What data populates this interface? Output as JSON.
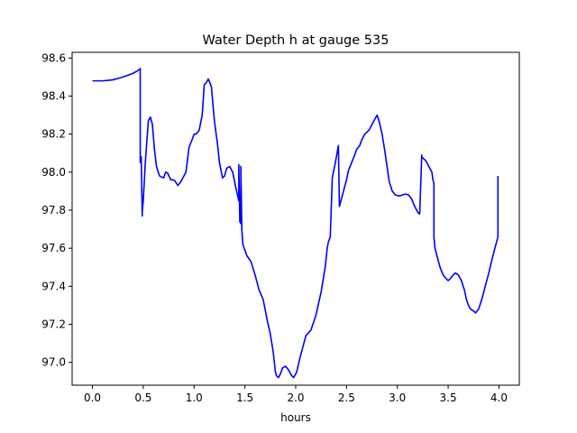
{
  "chart_data": {
    "type": "line",
    "title": "Water Depth h at gauge 535",
    "xlabel": "hours",
    "ylabel": "",
    "xlim": [
      -0.2,
      4.2
    ],
    "ylim": [
      96.88,
      98.63
    ],
    "xticks": [
      0.0,
      0.5,
      1.0,
      1.5,
      2.0,
      2.5,
      3.0,
      3.5,
      4.0
    ],
    "xtick_labels": [
      "0.0",
      "0.5",
      "1.0",
      "1.5",
      "2.0",
      "2.5",
      "3.0",
      "3.5",
      "4.0"
    ],
    "yticks": [
      97.0,
      97.2,
      97.4,
      97.6,
      97.8,
      98.0,
      98.2,
      98.4,
      98.6
    ],
    "ytick_labels": [
      "97.0",
      "97.2",
      "97.4",
      "97.6",
      "97.8",
      "98.0",
      "98.2",
      "98.4",
      "98.6"
    ],
    "grid": false,
    "legend": "none",
    "series": [
      {
        "color": "#0000ff",
        "x": [
          0.0,
          0.1,
          0.2,
          0.3,
          0.4,
          0.45,
          0.47,
          0.47,
          0.48,
          0.49,
          0.49,
          0.5,
          0.52,
          0.55,
          0.57,
          0.59,
          0.61,
          0.63,
          0.66,
          0.7,
          0.72,
          0.74,
          0.77,
          0.79,
          0.81,
          0.84,
          0.87,
          0.89,
          0.92,
          0.95,
          0.98,
          1.0,
          1.02,
          1.05,
          1.08,
          1.1,
          1.12,
          1.14,
          1.17,
          1.2,
          1.23,
          1.25,
          1.28,
          1.3,
          1.32,
          1.35,
          1.38,
          1.41,
          1.44,
          1.44,
          1.45,
          1.46,
          1.46,
          1.47,
          1.48,
          1.52,
          1.56,
          1.6,
          1.64,
          1.68,
          1.72,
          1.75,
          1.78,
          1.8,
          1.81,
          1.83,
          1.85,
          1.87,
          1.9,
          1.93,
          1.96,
          1.98,
          2.01,
          2.04,
          2.07,
          2.1,
          2.15,
          2.2,
          2.25,
          2.29,
          2.31,
          2.32,
          2.34,
          2.36,
          2.39,
          2.42,
          2.43,
          2.45,
          2.48,
          2.5,
          2.52,
          2.55,
          2.58,
          2.6,
          2.63,
          2.65,
          2.68,
          2.7,
          2.72,
          2.75,
          2.78,
          2.8,
          2.82,
          2.85,
          2.88,
          2.92,
          2.95,
          2.98,
          3.02,
          3.05,
          3.08,
          3.11,
          3.14,
          3.17,
          3.2,
          3.22,
          3.24,
          3.24,
          3.26,
          3.28,
          3.3,
          3.32,
          3.34,
          3.35,
          3.36,
          3.36,
          3.37,
          3.38,
          3.4,
          3.42,
          3.45,
          3.48,
          3.5,
          3.52,
          3.55,
          3.57,
          3.6,
          3.63,
          3.66,
          3.68,
          3.7,
          3.72,
          3.75,
          3.77,
          3.8,
          3.83,
          3.86,
          3.9,
          3.94,
          3.97,
          3.99,
          3.99
        ],
        "y": [
          98.48,
          98.48,
          98.485,
          98.5,
          98.52,
          98.535,
          98.545,
          98.05,
          98.08,
          97.77,
          97.79,
          97.85,
          98.05,
          98.27,
          98.29,
          98.25,
          98.12,
          98.03,
          97.98,
          97.97,
          98.0,
          97.995,
          97.96,
          97.96,
          97.955,
          97.93,
          97.95,
          97.97,
          98.0,
          98.13,
          98.17,
          98.2,
          98.2,
          98.22,
          98.3,
          98.46,
          98.47,
          98.49,
          98.45,
          98.27,
          98.15,
          98.05,
          97.97,
          97.98,
          98.02,
          98.03,
          98.0,
          97.92,
          97.85,
          98.04,
          97.74,
          97.73,
          98.03,
          97.7,
          97.62,
          97.56,
          97.53,
          97.46,
          97.38,
          97.33,
          97.22,
          97.15,
          97.05,
          96.95,
          96.93,
          96.92,
          96.94,
          96.97,
          96.98,
          96.96,
          96.93,
          96.92,
          96.95,
          97.02,
          97.08,
          97.14,
          97.17,
          97.25,
          97.37,
          97.5,
          97.6,
          97.63,
          97.66,
          97.97,
          98.05,
          98.14,
          97.82,
          97.86,
          97.92,
          97.96,
          98.01,
          98.05,
          98.09,
          98.12,
          98.14,
          98.17,
          98.2,
          98.21,
          98.22,
          98.25,
          98.28,
          98.3,
          98.27,
          98.2,
          98.1,
          97.95,
          97.9,
          97.88,
          97.875,
          97.88,
          97.885,
          97.88,
          97.86,
          97.82,
          97.79,
          97.78,
          98.09,
          98.08,
          98.07,
          98.06,
          98.04,
          98.02,
          98.0,
          97.96,
          97.94,
          97.66,
          97.6,
          97.58,
          97.54,
          97.5,
          97.46,
          97.44,
          97.43,
          97.44,
          97.46,
          97.47,
          97.46,
          97.43,
          97.38,
          97.33,
          97.3,
          97.28,
          97.27,
          97.26,
          97.28,
          97.33,
          97.39,
          97.47,
          97.56,
          97.62,
          97.66,
          97.98
        ]
      }
    ]
  }
}
